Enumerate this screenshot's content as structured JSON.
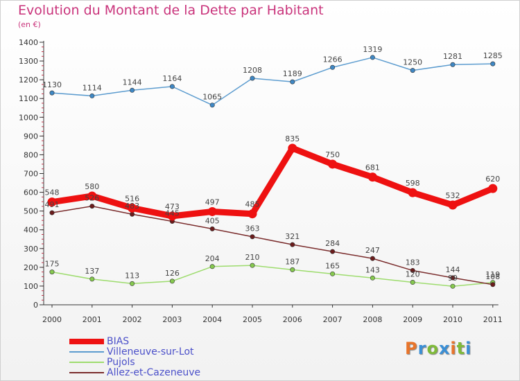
{
  "title": "Evolution du Montant de la Dette par Habitant",
  "unit": "(en €)",
  "logo": {
    "text": "Proxiti",
    "colors": [
      "#e8742a",
      "#3a8fd6",
      "#7fba3a",
      "#3a8fd6",
      "#e8742a",
      "#7fba3a",
      "#3a8fd6"
    ]
  },
  "chart_data": {
    "type": "line",
    "x": [
      "2000",
      "2001",
      "2002",
      "2003",
      "2004",
      "2005",
      "2006",
      "2007",
      "2008",
      "2009",
      "2010",
      "2011"
    ],
    "ylim": [
      0,
      1400
    ],
    "yticks": [
      0,
      100,
      200,
      300,
      400,
      500,
      600,
      700,
      800,
      900,
      1000,
      1100,
      1200,
      1300,
      1400
    ],
    "grid": false,
    "legend_position": "bottom-left",
    "series": [
      {
        "name": "BIAS",
        "color": "#ee1111",
        "marker": "#ee1111",
        "values": [
          548,
          580,
          516,
          473,
          497,
          485,
          835,
          750,
          681,
          598,
          532,
          620
        ]
      },
      {
        "name": "Villeneuve-sur-Lot",
        "color": "#5c9ccf",
        "marker": "#3f88c5",
        "values": [
          1130,
          1114,
          1144,
          1164,
          1065,
          1208,
          1189,
          1266,
          1319,
          1250,
          1281,
          1285
        ]
      },
      {
        "name": "Pujols",
        "color": "#9ddc6d",
        "marker": "#86c94f",
        "values": [
          175,
          137,
          113,
          126,
          204,
          210,
          187,
          165,
          143,
          120,
          99,
          119
        ]
      },
      {
        "name": "Allez-et-Cazeneuve",
        "color": "#7a2c2c",
        "marker": "#6b1c1c",
        "values": [
          491,
          526,
          483,
          445,
          405,
          363,
          321,
          284,
          247,
          183,
          144,
          108
        ]
      }
    ]
  }
}
